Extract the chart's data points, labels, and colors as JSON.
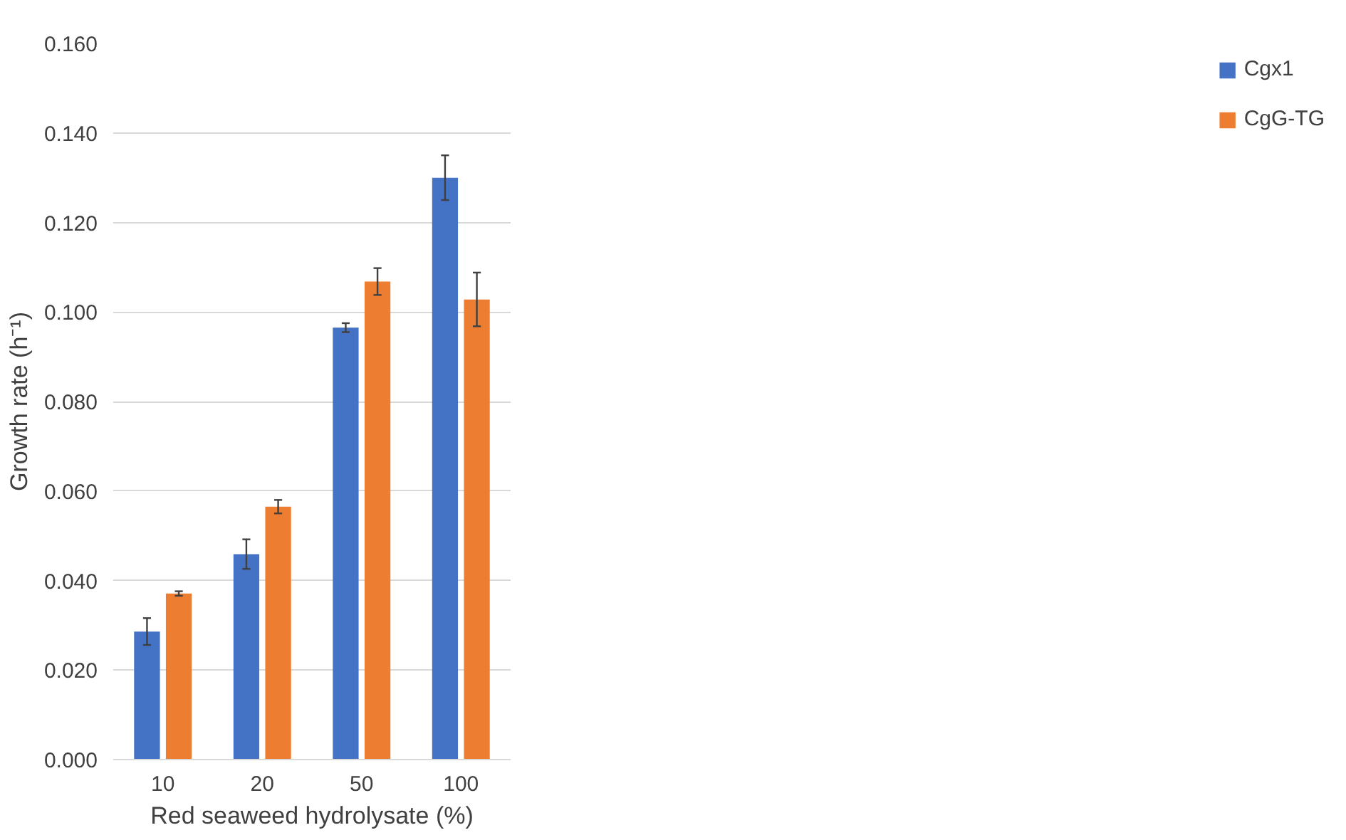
{
  "chart_data": {
    "type": "bar",
    "xlabel": "Red seaweed hydrolysate (%)",
    "ylabel": "Growth rate (h⁻¹)",
    "categories": [
      "10",
      "20",
      "50",
      "100"
    ],
    "series": [
      {
        "name": "Cgx1",
        "color": "#4472c4",
        "values": [
          0.0286,
          0.0459,
          0.0965,
          0.13
        ],
        "errors": [
          0.003,
          0.0033,
          0.001,
          0.005
        ]
      },
      {
        "name": "CgG-TG",
        "color": "#ed7d31",
        "values": [
          0.0371,
          0.0565,
          0.1068,
          0.1028
        ],
        "errors": [
          0.0005,
          0.0015,
          0.003,
          0.006
        ]
      }
    ],
    "ylim": [
      0,
      0.16
    ],
    "yticks": [
      {
        "value": 0,
        "label": "0.000"
      },
      {
        "value": 0.02,
        "label": "0.020"
      },
      {
        "value": 0.04,
        "label": "0.040"
      },
      {
        "value": 0.06,
        "label": "0.060"
      },
      {
        "value": 0.08,
        "label": "0.080"
      },
      {
        "value": 0.1,
        "label": "0.100"
      },
      {
        "value": 0.12,
        "label": "0.120"
      },
      {
        "value": 0.14,
        "label": "0.140"
      },
      {
        "value": 0.16,
        "label": "0.160"
      }
    ],
    "grid": "y",
    "legend": "right"
  }
}
